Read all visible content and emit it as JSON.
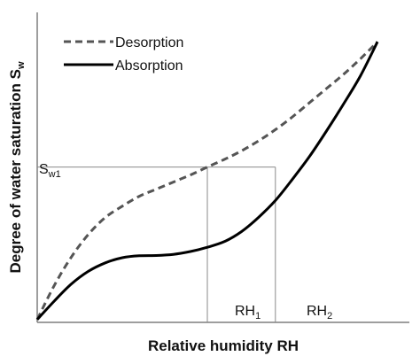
{
  "chart_data": {
    "type": "line",
    "xlabel": "Relative humidity RH",
    "ylabel": {
      "main": "Degree of water saturation S",
      "sub": "w"
    },
    "xlim": [
      0,
      1
    ],
    "ylim": [
      0,
      1
    ],
    "grid": false,
    "legend_position": "top-left",
    "series": [
      {
        "name": "Desorption",
        "style": "dashed",
        "color": "#555555",
        "x": [
          0.0,
          0.05,
          0.1,
          0.15,
          0.2,
          0.25,
          0.3,
          0.35,
          0.4,
          0.45,
          0.5,
          0.55,
          0.6,
          0.65,
          0.7,
          0.75,
          0.8,
          0.85,
          0.9,
          0.95,
          1.0
        ],
        "y": [
          0.01,
          0.13,
          0.23,
          0.31,
          0.37,
          0.41,
          0.445,
          0.47,
          0.495,
          0.52,
          0.548,
          0.575,
          0.605,
          0.64,
          0.68,
          0.725,
          0.775,
          0.825,
          0.875,
          0.93,
          0.99
        ]
      },
      {
        "name": "Absorption",
        "style": "solid",
        "color": "#000000",
        "x": [
          0.0,
          0.05,
          0.1,
          0.15,
          0.2,
          0.25,
          0.3,
          0.35,
          0.4,
          0.45,
          0.5,
          0.55,
          0.6,
          0.65,
          0.7,
          0.75,
          0.8,
          0.85,
          0.9,
          0.95,
          1.0
        ],
        "y": [
          0.01,
          0.075,
          0.135,
          0.18,
          0.21,
          0.228,
          0.235,
          0.236,
          0.24,
          0.25,
          0.265,
          0.285,
          0.32,
          0.37,
          0.43,
          0.505,
          0.585,
          0.675,
          0.77,
          0.87,
          0.99
        ]
      }
    ],
    "annotations": {
      "sw1": {
        "y": 0.548,
        "label_main": "S",
        "label_sub": "w1"
      },
      "rh1": {
        "x": 0.5,
        "label_main": "RH",
        "label_sub": "1"
      },
      "rh2": {
        "x": 0.7,
        "label_main": "RH",
        "label_sub": "2"
      }
    }
  }
}
